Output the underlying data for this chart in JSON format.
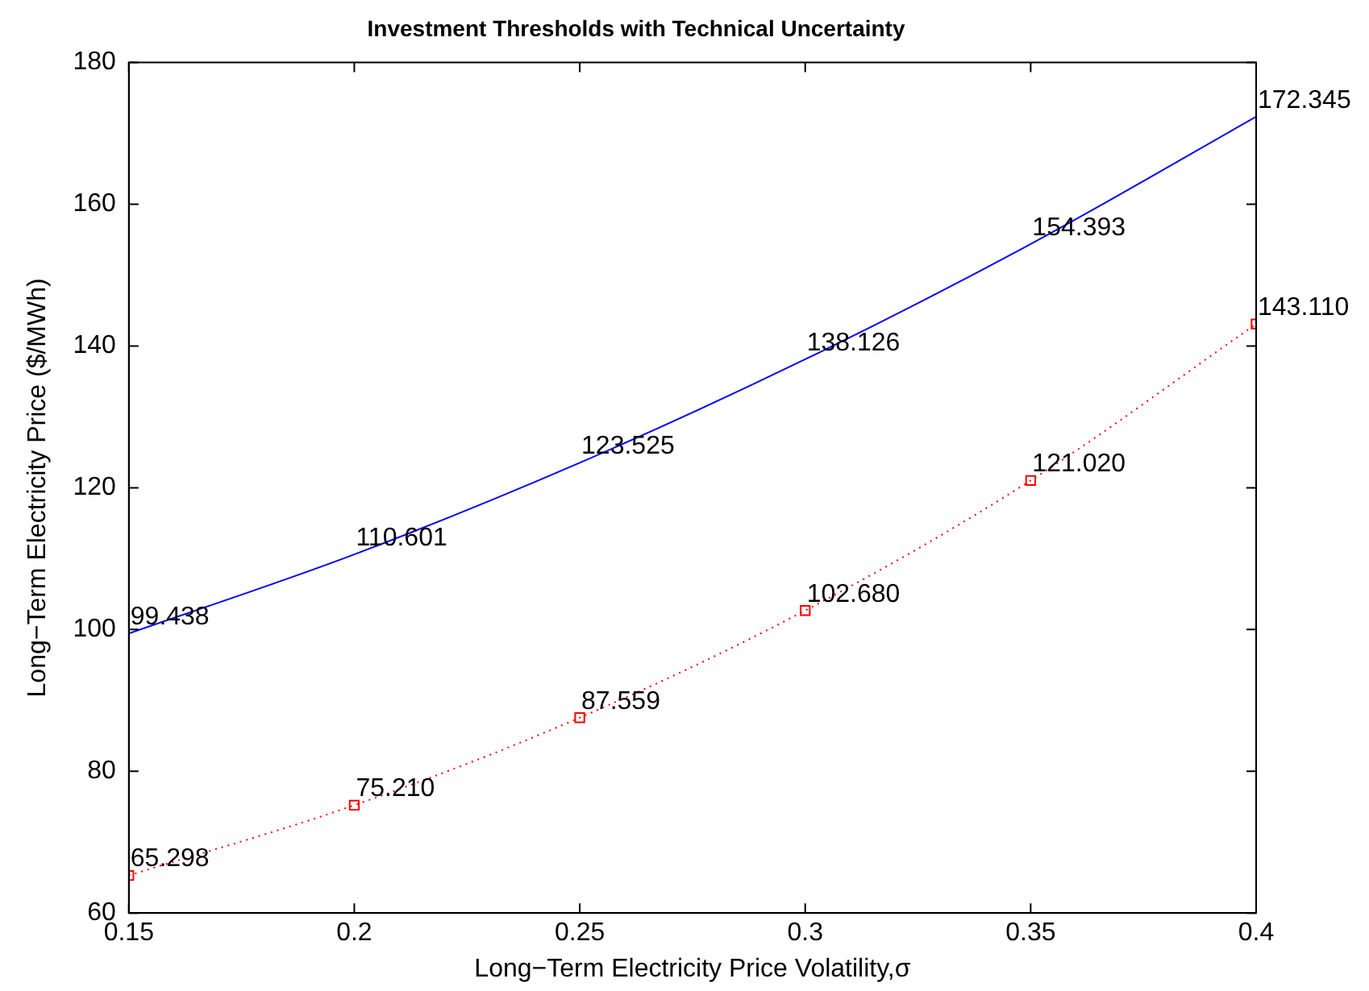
{
  "chart_data": {
    "type": "line",
    "title": "Investment Thresholds with Technical Uncertainty",
    "xlabel": "Long−Term Electricity Price Volatility,σ",
    "ylabel": "Long−Term Electricity Price ($/MWh)",
    "x": [
      0.15,
      0.2,
      0.25,
      0.3,
      0.35,
      0.4
    ],
    "series": [
      {
        "color": "#0000ff",
        "values": [
          99.438,
          110.601,
          123.525,
          138.126,
          154.393,
          172.345
        ],
        "value_labels": [
          "99.438",
          "110.601",
          "123.525",
          "138.126",
          "154.393",
          "172.345"
        ],
        "marker": "none",
        "line_style": "solid"
      },
      {
        "color": "#ff0000",
        "values": [
          65.298,
          75.21,
          87.559,
          102.68,
          121.02,
          143.11
        ],
        "value_labels": [
          "65.298",
          "75.210",
          "87.559",
          "102.680",
          "121.020",
          "143.110"
        ],
        "marker": "square",
        "line_style": "dotted"
      }
    ],
    "xlim": [
      0.15,
      0.4
    ],
    "xticks": [
      0.15,
      0.2,
      0.25,
      0.3,
      0.35,
      0.4
    ],
    "ylim": [
      60,
      180
    ],
    "yticks": [
      60,
      80,
      100,
      120,
      140,
      160,
      180
    ],
    "grid": false,
    "legend": false
  }
}
